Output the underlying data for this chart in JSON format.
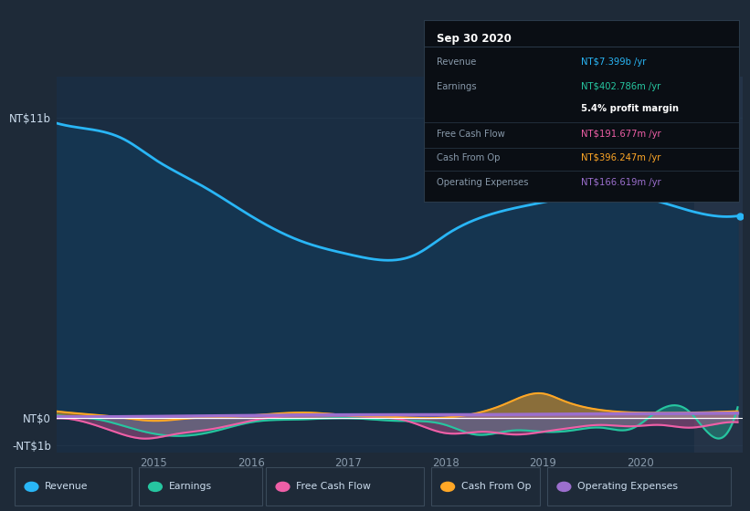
{
  "bg_color": "#1e2a38",
  "plot_bg_color": "#1a2d42",
  "grid_color": "#2a3f55",
  "zero_line_color": "#ffffff",
  "ylabel_top": "NT$11b",
  "ylabel_zero": "NT$0",
  "ylabel_bottom": "-NT$1b",
  "xticks_labels": [
    "2015",
    "2016",
    "2017",
    "2018",
    "2019",
    "2020"
  ],
  "legend_items": [
    {
      "label": "Revenue",
      "color": "#29b6f6"
    },
    {
      "label": "Earnings",
      "color": "#26c6a0"
    },
    {
      "label": "Free Cash Flow",
      "color": "#ef5fa7"
    },
    {
      "label": "Cash From Op",
      "color": "#ffa726"
    },
    {
      "label": "Operating Expenses",
      "color": "#9c6fce"
    }
  ],
  "info_box_bg": "#0a0e14",
  "info_box_border": "#2a3a4a",
  "revenue_color": "#29b6f6",
  "revenue_fill": "#1a4060",
  "earnings_color": "#26c6a0",
  "fcf_color": "#ef5fa7",
  "cashop_color": "#ffa726",
  "opex_color": "#9c6fce"
}
